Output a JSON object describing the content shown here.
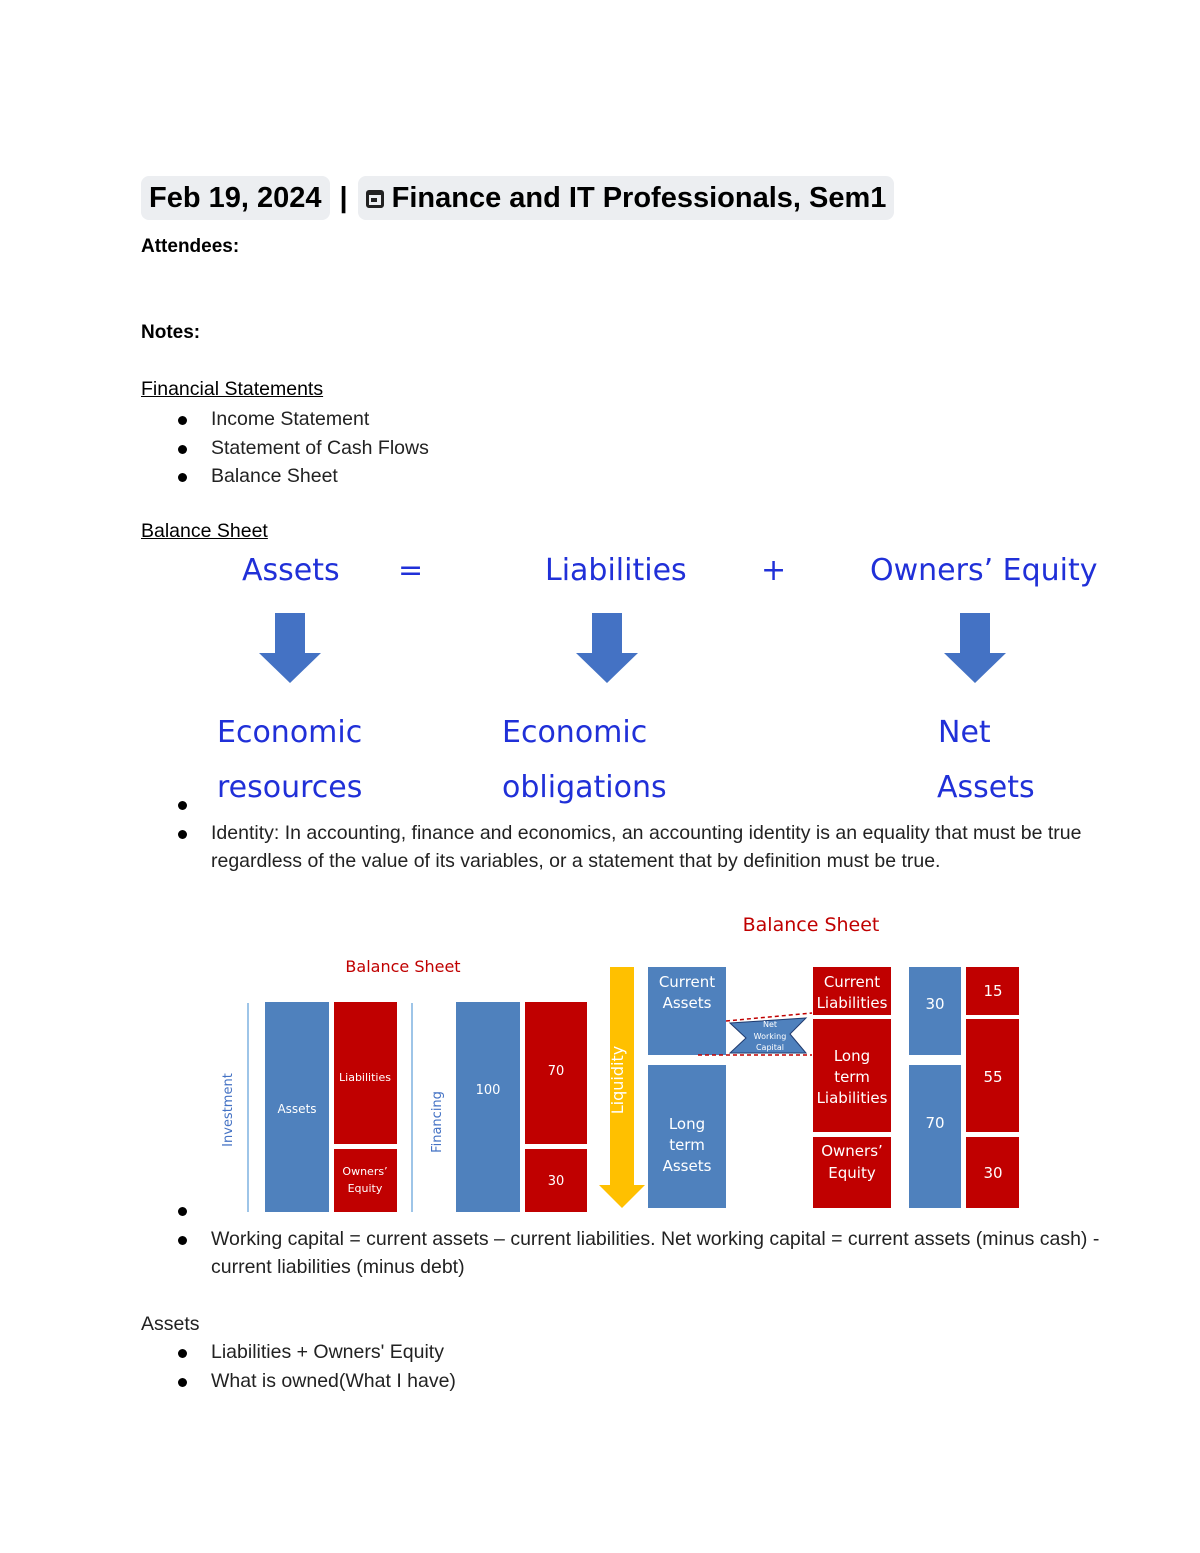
{
  "header": {
    "date_chip": "Feb 19, 2024",
    "separator": "|",
    "event_chip": "Finance and IT Professionals, Sem1",
    "event_icon": "calendar-icon"
  },
  "attendees_label": "Attendees:",
  "notes_label": "Notes:",
  "financial_statements": {
    "heading": "Financial Statements",
    "items": [
      "Income Statement",
      "Statement of Cash Flows",
      "Balance Sheet"
    ]
  },
  "balance_sheet_section": {
    "heading": "Balance Sheet",
    "equation": {
      "assets": "Assets",
      "equals": "=",
      "liabilities": "Liabilities",
      "plus": "+",
      "equity": "Owners’ Equity",
      "assets_line1": "Economic",
      "assets_line2": "resources",
      "liab_line1": "Economic",
      "liab_line2": "obligations",
      "equity_line1": "Net",
      "equity_line2": "Assets",
      "arrow_color": "#4472c4",
      "text_color": "#2030d8"
    },
    "identity_text": "Identity: In accounting, finance and economics, an accounting identity is an equality that must be true regardless of the value of its variables, or a statement that by definition must be true.",
    "diagram": {
      "left_title": "Balance Sheet",
      "right_title": "Balance Sheet",
      "investment": "Investment",
      "financing": "Financing",
      "assets": "Assets",
      "liabilities": "Liabilities",
      "owners_equity_1": "Owners’",
      "owners_equity_2": "Equity",
      "total": "100",
      "liab_value": "70",
      "equity_value": "30",
      "liquidity": "Liquidity",
      "current_assets_1": "Current",
      "current_assets_2": "Assets",
      "long_assets_1": "Long",
      "long_assets_2": "term",
      "long_assets_3": "Assets",
      "current_liab_1": "Current",
      "current_liab_2": "Liabilities",
      "long_liab_1": "Long",
      "long_liab_2": "term",
      "long_liab_3": "Liabilities",
      "nwc_1": "Net",
      "nwc_2": "Working",
      "nwc_3": "Capital",
      "ca_value": "30",
      "la_value": "70",
      "cl_value": "15",
      "ll_value": "55",
      "oe_value": "30",
      "blue": "#4f81bd",
      "red": "#c00000",
      "gold": "#ffc000"
    },
    "working_capital_text": "Working capital = current assets – current liabilities. Net working capital = current assets (minus cash) - current liabilities (minus debt)"
  },
  "assets_section": {
    "heading": "Assets",
    "items": [
      "Liabilities + Owners' Equity",
      "What is owned(What I have)"
    ]
  }
}
